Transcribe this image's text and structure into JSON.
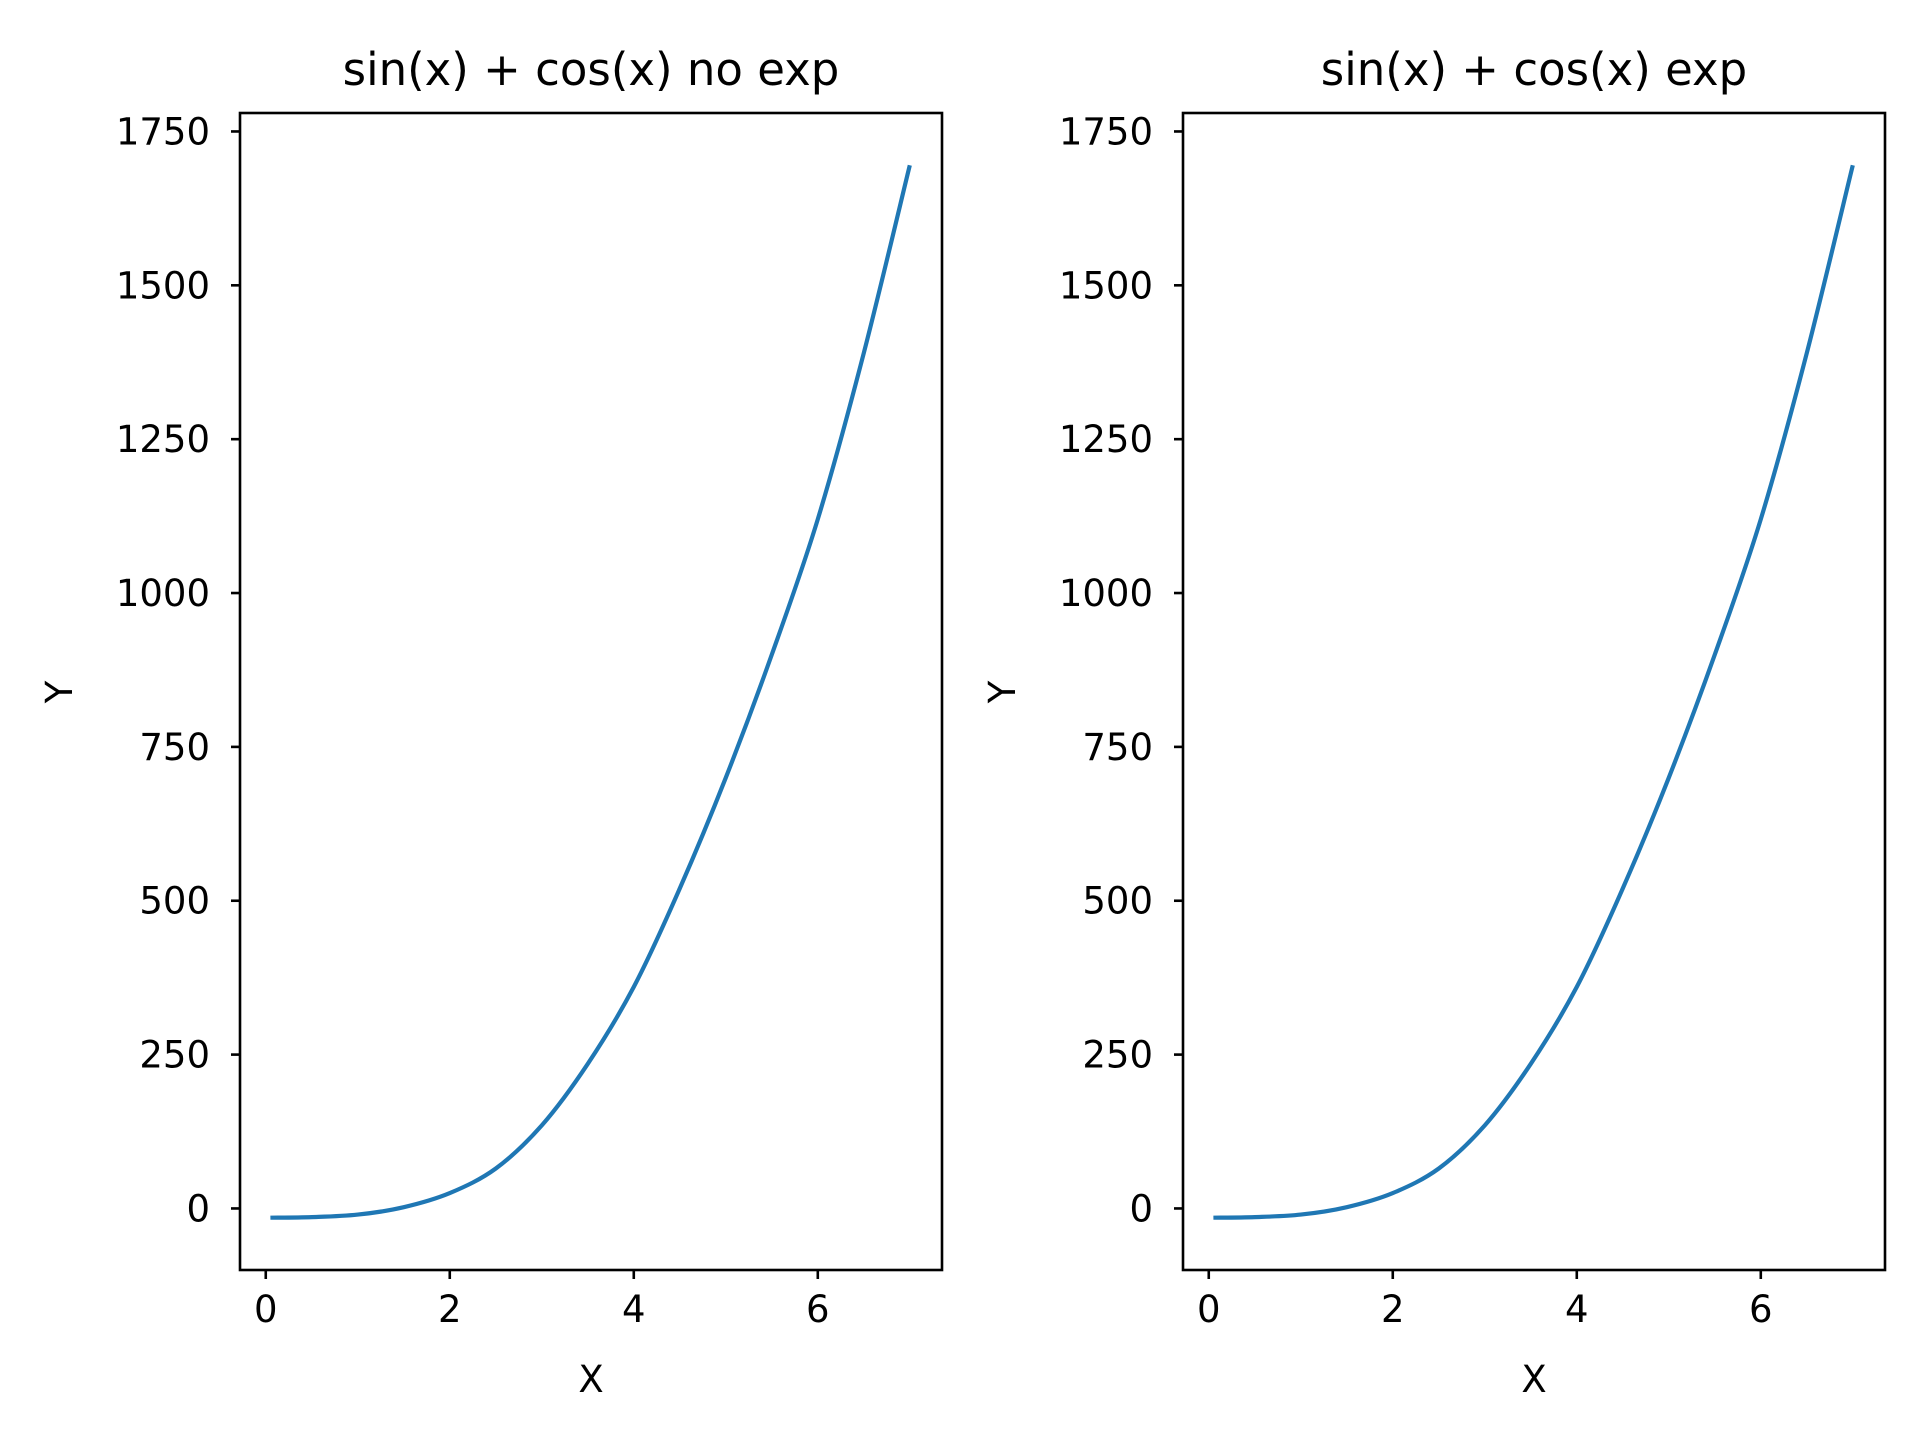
{
  "figure": {
    "background": "#ffffff"
  },
  "chart_data": [
    {
      "type": "line",
      "title": "sin(x) + cos(x) no exp",
      "xlabel": "X",
      "ylabel": "Y",
      "xlim": [
        -0.28,
        7.35
      ],
      "ylim": [
        -100,
        1780
      ],
      "xticks": [
        0,
        2,
        4,
        6
      ],
      "yticks": [
        0,
        250,
        500,
        750,
        1000,
        1250,
        1500,
        1750
      ],
      "grid": false,
      "series": [
        {
          "color": "#1f77b4",
          "x": [
            0.05,
            0.5,
            1.0,
            1.5,
            2.0,
            2.5,
            3.0,
            3.5,
            4.0,
            4.5,
            5.0,
            5.5,
            6.0,
            6.5,
            7.0
          ],
          "y": [
            -15,
            -14,
            -10,
            2,
            25,
            65,
            135,
            235,
            360,
            520,
            700,
            900,
            1120,
            1390,
            1695
          ]
        }
      ]
    },
    {
      "type": "line",
      "title": "sin(x) + cos(x) exp",
      "xlabel": "X",
      "ylabel": "Y",
      "xlim": [
        -0.28,
        7.35
      ],
      "ylim": [
        -100,
        1780
      ],
      "xticks": [
        0,
        2,
        4,
        6
      ],
      "yticks": [
        0,
        250,
        500,
        750,
        1000,
        1250,
        1500,
        1750
      ],
      "grid": false,
      "series": [
        {
          "color": "#1f77b4",
          "x": [
            0.05,
            0.5,
            1.0,
            1.5,
            2.0,
            2.5,
            3.0,
            3.5,
            4.0,
            4.5,
            5.0,
            5.5,
            6.0,
            6.5,
            7.0
          ],
          "y": [
            -15,
            -14,
            -10,
            2,
            25,
            65,
            135,
            235,
            360,
            520,
            700,
            900,
            1120,
            1390,
            1695
          ]
        }
      ]
    }
  ]
}
